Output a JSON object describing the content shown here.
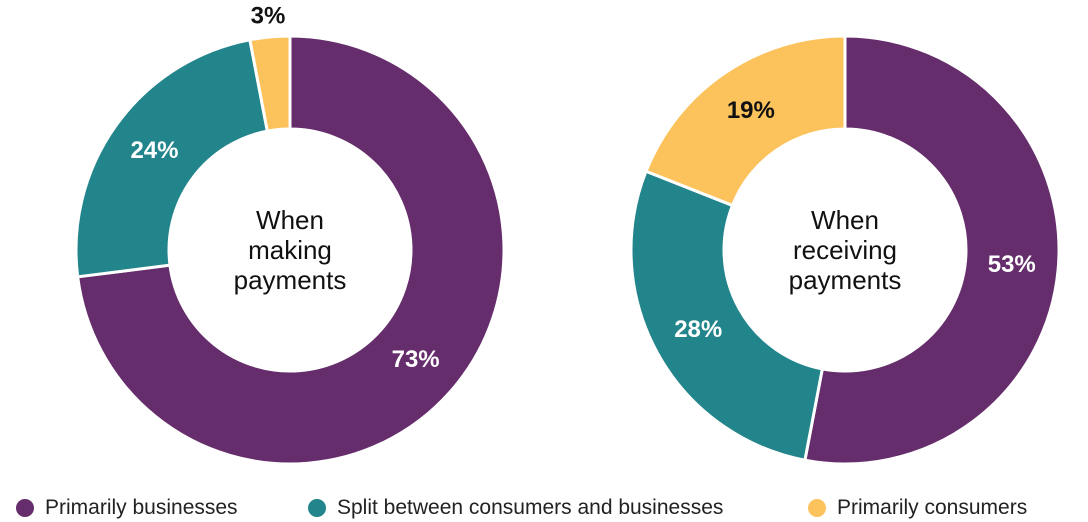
{
  "colors": {
    "primarily_businesses": "#652d6b",
    "split": "#22858b",
    "primarily_consumers": "#fcc35c",
    "label_on_dark": "#ffffff",
    "label_on_light": "#111111"
  },
  "legend": [
    {
      "label": "Primarily businesses",
      "color": "#652d6b"
    },
    {
      "label": "Split between consumers and businesses",
      "color": "#22858b"
    },
    {
      "label": "Primarily consumers",
      "color": "#fcc35c"
    }
  ],
  "chart_data": [
    {
      "type": "pie",
      "title": "When making payments",
      "title_lines": [
        "When",
        "making",
        "payments"
      ],
      "categories": [
        "Primarily businesses",
        "Split between consumers and businesses",
        "Primarily consumers"
      ],
      "values": [
        73,
        24,
        3
      ],
      "labels": [
        "73%",
        "24%",
        "3%"
      ]
    },
    {
      "type": "pie",
      "title": "When receiving payments",
      "title_lines": [
        "When",
        "receiving",
        "payments"
      ],
      "categories": [
        "Primarily businesses",
        "Split between consumers and businesses",
        "Primarily consumers"
      ],
      "values": [
        53,
        28,
        19
      ],
      "labels": [
        "53%",
        "28%",
        "19%"
      ]
    }
  ]
}
